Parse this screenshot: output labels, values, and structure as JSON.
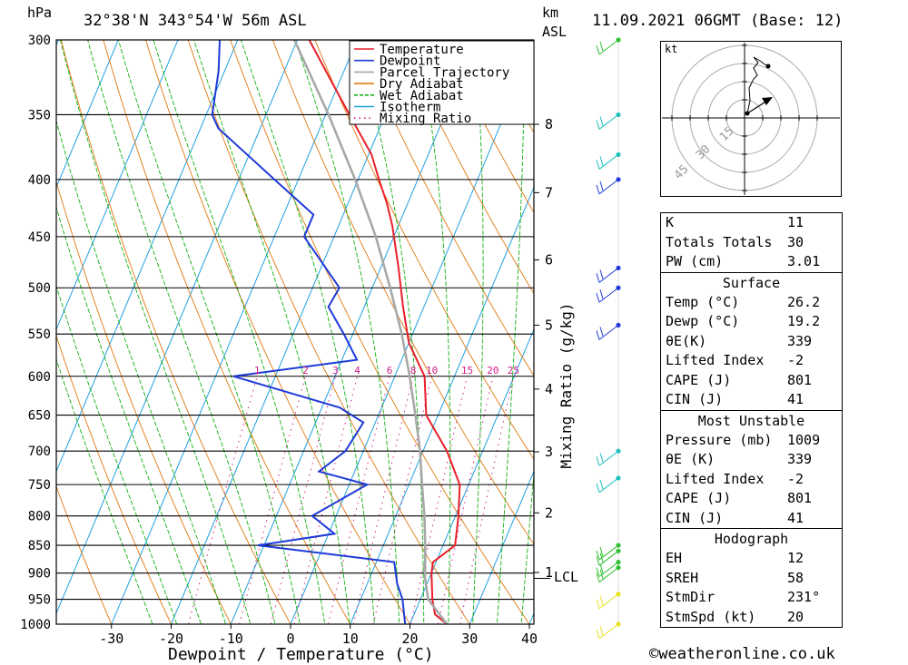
{
  "header": {
    "pressure_unit": "hPa",
    "location": "32°38'N 343°54'W 56m ASL",
    "km_label": "km",
    "asl_label": "ASL",
    "datetime": "11.09.2021 06GMT (Base: 12)"
  },
  "chart_data": {
    "type": "skew-t log-p",
    "xlabel": "Dewpoint / Temperature (°C)",
    "ylabel": "Mixing Ratio (g/kg)",
    "pressure_ticks": [
      300,
      350,
      400,
      450,
      500,
      550,
      600,
      650,
      700,
      750,
      800,
      850,
      900,
      950,
      1000
    ],
    "temperature_ticks": [
      -30,
      -20,
      -10,
      0,
      10,
      20,
      30,
      40
    ],
    "xlim": [
      -40,
      40
    ],
    "ylim_hpa": [
      1000,
      300
    ],
    "km_ticks": [
      1,
      2,
      3,
      4,
      5,
      6,
      7,
      8
    ],
    "km_tick_pressures": [
      899,
      795,
      701,
      616,
      540,
      472,
      411,
      357
    ],
    "lcl_label": "LCL",
    "lcl_pressure": 910,
    "mixing_ratio_labels": [
      "1",
      "2",
      "3",
      "4",
      "6",
      "8",
      "10",
      "15",
      "20",
      "25"
    ],
    "mixing_ratio_values": [
      1,
      2,
      3,
      4,
      6,
      8,
      10,
      15,
      20,
      25
    ],
    "legend": [
      {
        "name": "Temperature",
        "color": "#e8202a"
      },
      {
        "name": "Dewpoint",
        "color": "#1e3ad8"
      },
      {
        "name": "Parcel Trajectory",
        "color": "#a8a8a8"
      },
      {
        "name": "Dry Adiabat",
        "color": "#e07810"
      },
      {
        "name": "Wet Adiabat",
        "color": "#10b010"
      },
      {
        "name": "Isotherm",
        "color": "#20a0e0"
      },
      {
        "name": "Mixing Ratio",
        "color": "#d0208a"
      }
    ],
    "series": [
      {
        "name": "Temperature",
        "points": [
          [
            1000,
            26.2
          ],
          [
            980,
            23.5
          ],
          [
            950,
            22
          ],
          [
            900,
            20
          ],
          [
            880,
            19.5
          ],
          [
            850,
            22
          ],
          [
            800,
            20.5
          ],
          [
            750,
            18.5
          ],
          [
            700,
            14
          ],
          [
            650,
            8
          ],
          [
            600,
            5
          ],
          [
            560,
            0
          ],
          [
            520,
            -3.5
          ],
          [
            480,
            -7
          ],
          [
            440,
            -11
          ],
          [
            420,
            -13.5
          ],
          [
            400,
            -16.5
          ],
          [
            380,
            -19.5
          ],
          [
            350,
            -26
          ],
          [
            320,
            -33
          ],
          [
            300,
            -38
          ]
        ]
      },
      {
        "name": "Dewpoint",
        "points": [
          [
            1000,
            19.2
          ],
          [
            950,
            17
          ],
          [
            920,
            15
          ],
          [
            880,
            13
          ],
          [
            850,
            -11
          ],
          [
            830,
            1
          ],
          [
            800,
            -4
          ],
          [
            750,
            3
          ],
          [
            730,
            -6
          ],
          [
            700,
            -3
          ],
          [
            660,
            -2
          ],
          [
            640,
            -7
          ],
          [
            600,
            -27
          ],
          [
            580,
            -7.5
          ],
          [
            550,
            -11.5
          ],
          [
            520,
            -16
          ],
          [
            500,
            -15.5
          ],
          [
            450,
            -25
          ],
          [
            430,
            -25
          ],
          [
            400,
            -34
          ],
          [
            360,
            -47
          ],
          [
            350,
            -49
          ],
          [
            320,
            -51
          ],
          [
            300,
            -53
          ]
        ]
      },
      {
        "name": "Parcel Trajectory",
        "points": [
          [
            1000,
            26.2
          ],
          [
            950,
            21.3
          ],
          [
            910,
            19.3
          ],
          [
            850,
            17
          ],
          [
            800,
            14.8
          ],
          [
            750,
            12.2
          ],
          [
            700,
            9.5
          ],
          [
            650,
            6.2
          ],
          [
            600,
            2.5
          ],
          [
            550,
            -1.8
          ],
          [
            500,
            -7
          ],
          [
            450,
            -13
          ],
          [
            400,
            -20.5
          ],
          [
            350,
            -29.5
          ],
          [
            300,
            -40.5
          ]
        ]
      }
    ],
    "wind_barbs": {
      "pressures": [
        300,
        350,
        380,
        400,
        480,
        500,
        540,
        700,
        740,
        850,
        860,
        880,
        890,
        940,
        1000
      ]
    }
  },
  "hodograph": {
    "unit": "kt",
    "ring_labels": [
      "15",
      "30",
      "45"
    ]
  },
  "stats": {
    "k": {
      "label": "K",
      "value": "11"
    },
    "tt": {
      "label": "Totals Totals",
      "value": "30"
    },
    "pw": {
      "label": "PW (cm)",
      "value": "3.01"
    },
    "surface": {
      "title": "Surface",
      "temp": {
        "label": "Temp (°C)",
        "value": "26.2"
      },
      "dewp": {
        "label": "Dewp (°C)",
        "value": "19.2"
      },
      "theta": {
        "label": "θE(K)",
        "value": "339"
      },
      "li": {
        "label": "Lifted Index",
        "value": "-2"
      },
      "cape": {
        "label": "CAPE (J)",
        "value": "801"
      },
      "cin": {
        "label": "CIN (J)",
        "value": "41"
      }
    },
    "mu": {
      "title": "Most Unstable",
      "pres": {
        "label": "Pressure (mb)",
        "value": "1009"
      },
      "theta": {
        "label": "θE (K)",
        "value": "339"
      },
      "li": {
        "label": "Lifted Index",
        "value": "-2"
      },
      "cape": {
        "label": "CAPE (J)",
        "value": "801"
      },
      "cin": {
        "label": "CIN (J)",
        "value": "41"
      }
    },
    "hodo": {
      "title": "Hodograph",
      "eh": {
        "label": "EH",
        "value": "12"
      },
      "sreh": {
        "label": "SREH",
        "value": "58"
      },
      "dir": {
        "label": "StmDir",
        "value": "231°"
      },
      "spd": {
        "label": "StmSpd (kt)",
        "value": "20"
      }
    }
  },
  "footer": {
    "credit": "©weatheronline.co.uk"
  }
}
